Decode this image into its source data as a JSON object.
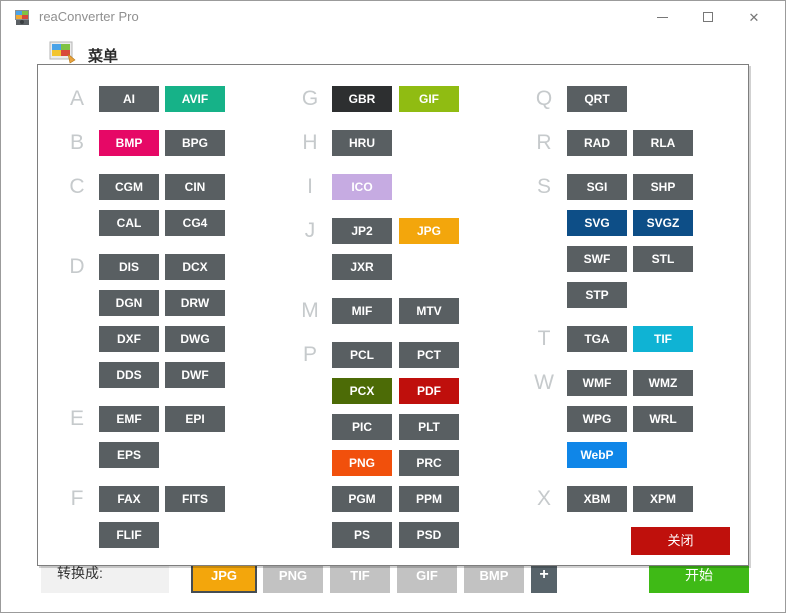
{
  "window": {
    "title": "reaConverter Pro",
    "controls": {
      "minimize": "minimize",
      "maximize": "maximize",
      "close": "✕"
    }
  },
  "menu": {
    "label": "菜单"
  },
  "dialog": {
    "close_label": "关闭",
    "columns": [
      {
        "groups": [
          {
            "letter": "A",
            "rows": [
              [
                {
                  "label": "AI"
                },
                {
                  "label": "AVIF",
                  "color": "#16B288"
                }
              ]
            ]
          },
          {
            "letter": "B",
            "rows": [
              [
                {
                  "label": "BMP",
                  "color": "#E60866"
                },
                {
                  "label": "BPG"
                }
              ]
            ]
          },
          {
            "letter": "C",
            "rows": [
              [
                {
                  "label": "CGM"
                },
                {
                  "label": "CIN"
                }
              ],
              [
                {
                  "label": "CAL"
                },
                {
                  "label": "CG4"
                }
              ]
            ]
          },
          {
            "letter": "D",
            "rows": [
              [
                {
                  "label": "DIS"
                },
                {
                  "label": "DCX"
                }
              ],
              [
                {
                  "label": "DGN"
                },
                {
                  "label": "DRW"
                }
              ],
              [
                {
                  "label": "DXF"
                },
                {
                  "label": "DWG"
                }
              ],
              [
                {
                  "label": "DDS"
                },
                {
                  "label": "DWF"
                }
              ]
            ]
          },
          {
            "letter": "E",
            "rows": [
              [
                {
                  "label": "EMF"
                },
                {
                  "label": "EPI"
                }
              ],
              [
                {
                  "label": "EPS"
                }
              ]
            ]
          },
          {
            "letter": "F",
            "rows": [
              [
                {
                  "label": "FAX"
                },
                {
                  "label": "FITS"
                }
              ],
              [
                {
                  "label": "FLIF"
                }
              ]
            ]
          }
        ]
      },
      {
        "groups": [
          {
            "letter": "G",
            "rows": [
              [
                {
                  "label": "GBR",
                  "color": "#2D2F30"
                },
                {
                  "label": "GIF",
                  "color": "#90BC12"
                }
              ]
            ]
          },
          {
            "letter": "H",
            "rows": [
              [
                {
                  "label": "HRU"
                }
              ]
            ]
          },
          {
            "letter": "I",
            "rows": [
              [
                {
                  "label": "ICO",
                  "color": "#C6ABE2"
                }
              ]
            ]
          },
          {
            "letter": "J",
            "rows": [
              [
                {
                  "label": "JP2"
                },
                {
                  "label": "JPG",
                  "color": "#F3A60C"
                }
              ],
              [
                {
                  "label": "JXR"
                }
              ]
            ]
          },
          {
            "letter": "M",
            "rows": [
              [
                {
                  "label": "MIF"
                },
                {
                  "label": "MTV"
                }
              ]
            ]
          },
          {
            "letter": "P",
            "rows": [
              [
                {
                  "label": "PCL"
                },
                {
                  "label": "PCT"
                }
              ],
              [
                {
                  "label": "PCX",
                  "color": "#4C6B06"
                },
                {
                  "label": "PDF",
                  "color": "#BF0F0C"
                }
              ],
              [
                {
                  "label": "PIC"
                },
                {
                  "label": "PLT"
                }
              ],
              [
                {
                  "label": "PNG",
                  "color": "#F1500C"
                },
                {
                  "label": "PRC"
                }
              ],
              [
                {
                  "label": "PGM"
                },
                {
                  "label": "PPM"
                }
              ],
              [
                {
                  "label": "PS"
                },
                {
                  "label": "PSD"
                }
              ]
            ]
          }
        ]
      },
      {
        "groups": [
          {
            "letter": "Q",
            "rows": [
              [
                {
                  "label": "QRT"
                }
              ]
            ]
          },
          {
            "letter": "R",
            "rows": [
              [
                {
                  "label": "RAD"
                },
                {
                  "label": "RLA"
                }
              ]
            ]
          },
          {
            "letter": "S",
            "rows": [
              [
                {
                  "label": "SGI"
                },
                {
                  "label": "SHP"
                }
              ],
              [
                {
                  "label": "SVG",
                  "color": "#0D4E87"
                },
                {
                  "label": "SVGZ",
                  "color": "#0D4E87"
                }
              ],
              [
                {
                  "label": "SWF"
                },
                {
                  "label": "STL"
                }
              ],
              [
                {
                  "label": "STP"
                }
              ]
            ]
          },
          {
            "letter": "T",
            "rows": [
              [
                {
                  "label": "TGA"
                },
                {
                  "label": "TIF",
                  "color": "#0FB3D4"
                }
              ]
            ]
          },
          {
            "letter": "W",
            "rows": [
              [
                {
                  "label": "WMF"
                },
                {
                  "label": "WMZ"
                }
              ],
              [
                {
                  "label": "WPG"
                },
                {
                  "label": "WRL"
                }
              ],
              [
                {
                  "label": "WebP",
                  "color": "#0F86E8"
                }
              ]
            ]
          },
          {
            "letter": "X",
            "rows": [
              [
                {
                  "label": "XBM"
                },
                {
                  "label": "XPM"
                }
              ]
            ]
          }
        ]
      }
    ]
  },
  "bottom_bar": {
    "convert_label": "转换成:",
    "formats": [
      {
        "label": "JPG",
        "selected": true,
        "color": "#F3A60C"
      },
      {
        "label": "PNG"
      },
      {
        "label": "TIF"
      },
      {
        "label": "GIF"
      },
      {
        "label": "BMP"
      }
    ],
    "add_label": "+",
    "start_label": "开始"
  },
  "colors": {
    "default_format_button": "#595F62",
    "inactive_bottom_button": "#C2C2C2",
    "close_button": "#BF100C",
    "start_button": "#3FBA16"
  }
}
